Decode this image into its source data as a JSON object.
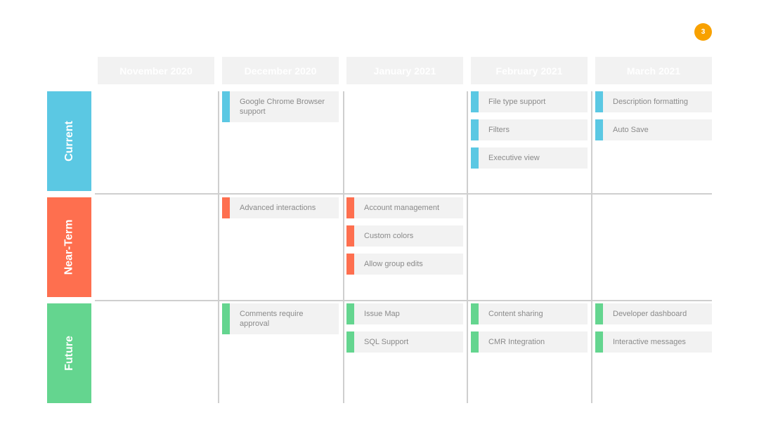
{
  "page_number": "3",
  "months": [
    "November 2020",
    "December 2020",
    "January 2021",
    "February 2021",
    "March 2021"
  ],
  "lanes": [
    {
      "label": "Current",
      "color": "#5bc8e3",
      "cells": [
        [],
        [
          "Google Chrome Browser support"
        ],
        [],
        [
          "File type support",
          "Filters",
          "Executive view"
        ],
        [
          "Description formatting",
          "Auto Save"
        ]
      ]
    },
    {
      "label": "Near-Term",
      "color": "#fe6f4f",
      "cells": [
        [],
        [
          "Advanced interactions"
        ],
        [
          "Account management",
          "Custom colors",
          "Allow group edits"
        ],
        [],
        []
      ]
    },
    {
      "label": "Future",
      "color": "#64d58f",
      "cells": [
        [],
        [
          "Comments require approval"
        ],
        [
          "Issue Map",
          "SQL Support"
        ],
        [
          "Content sharing",
          "CMR Integration"
        ],
        [
          "Developer dashboard",
          "Interactive messages"
        ]
      ]
    }
  ]
}
